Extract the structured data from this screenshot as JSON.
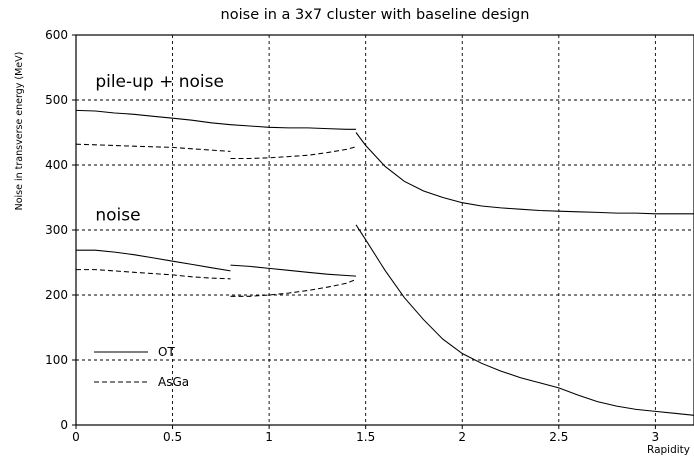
{
  "chart_data": {
    "type": "line",
    "title": "noise in a 3x7 cluster with baseline design",
    "xlabel": "Rapidity",
    "ylabel": "Noise in transverse energy (MeV)",
    "xlim": [
      0,
      3.2
    ],
    "ylim": [
      0,
      600
    ],
    "x_ticks": [
      0,
      0.5,
      1,
      1.5,
      2,
      2.5,
      3
    ],
    "x_tick_labels": [
      "0",
      "0.5",
      "1",
      "1.5",
      "2",
      "2.5",
      "3"
    ],
    "y_ticks": [
      0,
      100,
      200,
      300,
      400,
      500,
      600
    ],
    "y_tick_labels": [
      "0",
      "100",
      "200",
      "300",
      "400",
      "500",
      "600"
    ],
    "grid": true,
    "legend_position": "bottom-left",
    "legend": [
      {
        "label": "OT",
        "dash": "solid"
      },
      {
        "label": "AsGa",
        "dash": "dashed"
      }
    ],
    "annotations": [
      {
        "text": "pile-up + noise",
        "x": 0.1,
        "y": 520
      },
      {
        "text": "noise",
        "x": 0.1,
        "y": 315
      }
    ],
    "series": [
      {
        "group": "pile-up + noise",
        "legend_ref": "OT",
        "dash": "solid",
        "x": [
          0,
          0.1,
          0.2,
          0.3,
          0.4,
          0.5,
          0.6,
          0.7,
          0.8
        ],
        "y": [
          484,
          483,
          480,
          478,
          475,
          472,
          469,
          465,
          462
        ]
      },
      {
        "group": "pile-up + noise",
        "legend_ref": "OT",
        "dash": "solid",
        "x": [
          0.8,
          0.9,
          1.0,
          1.1,
          1.2,
          1.3,
          1.4,
          1.45
        ],
        "y": [
          462,
          460,
          458,
          457,
          457,
          456,
          455,
          455
        ]
      },
      {
        "group": "pile-up + noise",
        "legend_ref": "OT",
        "dash": "solid",
        "x": [
          1.45,
          1.5,
          1.6,
          1.7,
          1.8,
          1.9,
          2.0,
          2.1,
          2.2,
          2.3,
          2.4,
          2.5,
          2.6,
          2.7,
          2.8,
          2.9,
          3.0,
          3.1,
          3.2
        ],
        "y": [
          450,
          430,
          398,
          375,
          360,
          350,
          342,
          337,
          334,
          332,
          330,
          329,
          328,
          327,
          326,
          326,
          325,
          325,
          325
        ]
      },
      {
        "group": "pile-up + noise",
        "legend_ref": "AsGa",
        "dash": "dashed",
        "x": [
          0,
          0.1,
          0.2,
          0.3,
          0.4,
          0.5,
          0.6,
          0.7,
          0.8
        ],
        "y": [
          432,
          431,
          430,
          429,
          428,
          427,
          425,
          423,
          421
        ]
      },
      {
        "group": "pile-up + noise",
        "legend_ref": "AsGa",
        "dash": "dashed",
        "x": [
          0.8,
          0.9,
          1.0,
          1.1,
          1.2,
          1.3,
          1.4,
          1.45
        ],
        "y": [
          410,
          410,
          411,
          413,
          415,
          419,
          424,
          428
        ]
      },
      {
        "group": "noise",
        "legend_ref": "OT",
        "dash": "solid",
        "x": [
          0,
          0.1,
          0.2,
          0.3,
          0.4,
          0.5,
          0.6,
          0.7,
          0.8
        ],
        "y": [
          269,
          269,
          266,
          262,
          257,
          252,
          247,
          242,
          237
        ]
      },
      {
        "group": "noise",
        "legend_ref": "OT",
        "dash": "solid",
        "x": [
          0.8,
          0.9,
          1.0,
          1.1,
          1.2,
          1.3,
          1.4,
          1.45
        ],
        "y": [
          246,
          244,
          241,
          238,
          235,
          232,
          230,
          229
        ]
      },
      {
        "group": "noise",
        "legend_ref": "OT",
        "dash": "solid",
        "x": [
          1.45,
          1.5,
          1.6,
          1.7,
          1.8,
          1.9,
          2.0,
          2.1,
          2.2,
          2.3,
          2.4,
          2.5,
          2.6,
          2.7,
          2.8,
          2.9,
          3.0,
          3.1,
          3.2
        ],
        "y": [
          308,
          285,
          238,
          196,
          162,
          132,
          110,
          95,
          83,
          73,
          65,
          57,
          46,
          36,
          29,
          24,
          21,
          18,
          15
        ]
      },
      {
        "group": "noise",
        "legend_ref": "AsGa",
        "dash": "dashed",
        "x": [
          0,
          0.1,
          0.2,
          0.3,
          0.4,
          0.5,
          0.6,
          0.7,
          0.8
        ],
        "y": [
          239,
          239,
          237,
          235,
          233,
          231,
          228,
          226,
          225
        ]
      },
      {
        "group": "noise",
        "legend_ref": "AsGa",
        "dash": "dashed",
        "x": [
          0.8,
          0.9,
          1.0,
          1.1,
          1.2,
          1.3,
          1.4,
          1.45
        ],
        "y": [
          198,
          198,
          200,
          203,
          207,
          212,
          218,
          224
        ]
      }
    ]
  }
}
